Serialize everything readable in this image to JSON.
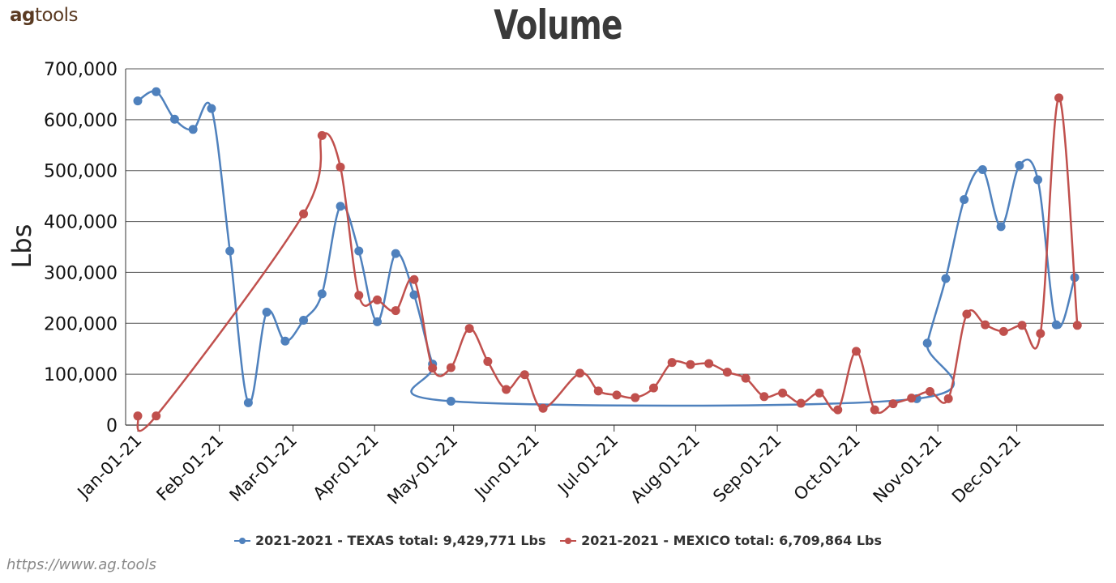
{
  "header": {
    "logo_bold": "ag",
    "logo_rest": "tools",
    "source_url": "https://www.ag.tools"
  },
  "chart_data": {
    "type": "line",
    "title": "Volume",
    "xlabel": "",
    "ylabel": "Lbs",
    "ylim": [
      0,
      700000
    ],
    "y_ticks": [
      0,
      100000,
      200000,
      300000,
      400000,
      500000,
      600000,
      700000
    ],
    "y_tick_labels": [
      "0",
      "100,000",
      "200,000",
      "300,000",
      "400,000",
      "500,000",
      "600,000",
      "700,000"
    ],
    "x_range": [
      "2021-01-01",
      "2021-12-31"
    ],
    "x_ticks": [
      "2021-01-01",
      "2021-02-01",
      "2021-03-01",
      "2021-04-01",
      "2021-05-01",
      "2021-06-01",
      "2021-07-01",
      "2021-08-01",
      "2021-09-01",
      "2021-10-01",
      "2021-11-01",
      "2021-12-01"
    ],
    "x_tick_labels": [
      "Jan-01-21",
      "Feb-01-21",
      "Mar-01-21",
      "Apr-01-21",
      "May-01-21",
      "Jun-01-21",
      "Jul-01-21",
      "Aug-01-21",
      "Sep-01-21",
      "Oct-01-21",
      "Nov-01-21",
      "Dec-01-21"
    ],
    "grid": true,
    "legend_position": "bottom",
    "series": [
      {
        "name": "2021-2021 - TEXAS total: 9,429,771 Lbs",
        "color": "#4f81bd",
        "points": [
          [
            "2021-01-01",
            637000
          ],
          [
            "2021-01-08",
            655000
          ],
          [
            "2021-01-15",
            601000
          ],
          [
            "2021-01-22",
            581000
          ],
          [
            "2021-01-29",
            622000
          ],
          [
            "2021-02-05",
            342000
          ],
          [
            "2021-02-12",
            44000
          ],
          [
            "2021-02-19",
            222000
          ],
          [
            "2021-02-26",
            165000
          ],
          [
            "2021-03-05",
            206000
          ],
          [
            "2021-03-12",
            258000
          ],
          [
            "2021-03-19",
            430000
          ],
          [
            "2021-03-26",
            342000
          ],
          [
            "2021-04-02",
            203000
          ],
          [
            "2021-04-09",
            337000
          ],
          [
            "2021-04-16",
            256000
          ],
          [
            "2021-04-23",
            120000
          ],
          [
            "2021-04-30",
            47000
          ],
          [
            "2021-10-24",
            52000
          ],
          [
            "2021-10-28",
            161000
          ],
          [
            "2021-11-04",
            288000
          ],
          [
            "2021-11-11",
            443000
          ],
          [
            "2021-11-18",
            502000
          ],
          [
            "2021-11-25",
            390000
          ],
          [
            "2021-12-02",
            510000
          ],
          [
            "2021-12-09",
            482000
          ],
          [
            "2021-12-16",
            197000
          ],
          [
            "2021-12-23",
            290000
          ]
        ]
      },
      {
        "name": "2021-2021 - MEXICO total: 6,709,864 Lbs",
        "color": "#c0504d",
        "points": [
          [
            "2021-01-01",
            18000
          ],
          [
            "2021-01-08",
            18000
          ],
          [
            "2021-03-05",
            415000
          ],
          [
            "2021-03-12",
            569000
          ],
          [
            "2021-03-19",
            507000
          ],
          [
            "2021-03-26",
            255000
          ],
          [
            "2021-04-02",
            246000
          ],
          [
            "2021-04-09",
            225000
          ],
          [
            "2021-04-16",
            286000
          ],
          [
            "2021-04-23",
            112000
          ],
          [
            "2021-04-30",
            113000
          ],
          [
            "2021-05-07",
            190000
          ],
          [
            "2021-05-14",
            125000
          ],
          [
            "2021-05-21",
            70000
          ],
          [
            "2021-05-28",
            99000
          ],
          [
            "2021-06-04",
            33000
          ],
          [
            "2021-06-18",
            102000
          ],
          [
            "2021-06-25",
            67000
          ],
          [
            "2021-07-02",
            59000
          ],
          [
            "2021-07-09",
            54000
          ],
          [
            "2021-07-16",
            73000
          ],
          [
            "2021-07-23",
            123000
          ],
          [
            "2021-07-30",
            119000
          ],
          [
            "2021-08-06",
            121000
          ],
          [
            "2021-08-13",
            104000
          ],
          [
            "2021-08-20",
            92000
          ],
          [
            "2021-08-27",
            56000
          ],
          [
            "2021-09-03",
            63000
          ],
          [
            "2021-09-10",
            43000
          ],
          [
            "2021-09-17",
            63000
          ],
          [
            "2021-09-24",
            30000
          ],
          [
            "2021-10-01",
            145000
          ],
          [
            "2021-10-08",
            30000
          ],
          [
            "2021-10-15",
            42000
          ],
          [
            "2021-10-22",
            53000
          ],
          [
            "2021-10-29",
            66000
          ],
          [
            "2021-11-05",
            52000
          ],
          [
            "2021-11-12",
            218000
          ],
          [
            "2021-11-19",
            197000
          ],
          [
            "2021-11-26",
            184000
          ],
          [
            "2021-12-03",
            196000
          ],
          [
            "2021-12-10",
            180000
          ],
          [
            "2021-12-17",
            643000
          ],
          [
            "2021-12-24",
            196000
          ]
        ]
      }
    ]
  }
}
